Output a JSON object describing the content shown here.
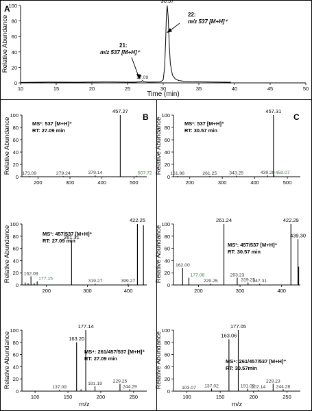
{
  "panels": [
    {
      "id": "A",
      "letter": "A",
      "type": "line",
      "ylabel": "Relative Abundance",
      "xlabel": "Time (min)",
      "xlim": [
        10,
        50
      ],
      "ylim": [
        0,
        100
      ],
      "xticks": [
        10,
        15,
        20,
        25,
        30,
        35,
        40,
        45,
        50
      ],
      "yticks": [
        0,
        20,
        40,
        60,
        80,
        100
      ],
      "labels_a": [
        {
          "text": "30.57",
          "x": 30.57,
          "y": 101
        }
      ],
      "labels_b": [
        {
          "text": "27.09",
          "x": 27.09,
          "y": 3.5
        }
      ],
      "series": [
        {
          "x": [
            10,
            14,
            18,
            22,
            26,
            26.9,
            27.09,
            27.3,
            28,
            29.6,
            30.0,
            30.2,
            30.35,
            30.45,
            30.57,
            30.7,
            30.85,
            31.0,
            31.3,
            31.7,
            32.2,
            33,
            34,
            36,
            38,
            39.5
          ],
          "y": [
            0.5,
            1.0,
            0.8,
            1.2,
            0.9,
            1.5,
            3.0,
            1.4,
            1.0,
            1.2,
            4,
            20,
            55,
            88,
            100,
            85,
            50,
            25,
            10,
            5,
            3,
            2,
            1.5,
            1.2,
            1.0,
            0.8
          ]
        }
      ],
      "annotations": [
        {
          "line1": "21:",
          "line2": "m/z 537 [M+H]⁺"
        },
        {
          "line1": "22:",
          "line2": "m/z 537 [M+H]⁺"
        }
      ]
    },
    {
      "id": "B1",
      "letter": "B",
      "type": "bar",
      "ylabel": "Relative Abundance",
      "xlabel": "",
      "xlim": [
        150,
        540
      ],
      "ylim": [
        0,
        100
      ],
      "xticks": [
        200,
        300,
        400,
        500
      ],
      "yticks": [
        0,
        20,
        40,
        60,
        80,
        100
      ],
      "bars": [
        {
          "x": 173.09,
          "y": 1
        },
        {
          "x": 279.24,
          "y": 1
        },
        {
          "x": 379.14,
          "y": 2
        },
        {
          "x": 457.27,
          "y": 100
        },
        {
          "x": 507.72,
          "y": 1.5
        }
      ],
      "labels_a": [
        {
          "text": "457.27",
          "x": 457.27,
          "y": 100
        }
      ],
      "labels_b": [
        {
          "text": "173.09",
          "x": 173.09,
          "y": 1
        },
        {
          "text": "279.24",
          "x": 279.24,
          "y": 1
        },
        {
          "text": "379.14",
          "x": 379.14,
          "y": 2
        }
      ],
      "labels_c": [
        {
          "text": "507.72",
          "x": 507.72,
          "y": 1.5
        }
      ],
      "info1": "MS²: 537 [M+H]⁺",
      "info2": "RT: 27.09 min"
    },
    {
      "id": "C1",
      "letter": "C",
      "type": "bar",
      "ylabel": "Relative Abundance",
      "xlabel": "",
      "xlim": [
        150,
        540
      ],
      "ylim": [
        0,
        100
      ],
      "xticks": [
        200,
        300,
        400,
        500
      ],
      "yticks": [
        0,
        20,
        40,
        60,
        80,
        100
      ],
      "bars": [
        {
          "x": 161.98,
          "y": 1
        },
        {
          "x": 261.25,
          "y": 1
        },
        {
          "x": 343.25,
          "y": 1.5
        },
        {
          "x": 439.28,
          "y": 2
        },
        {
          "x": 457.31,
          "y": 100
        },
        {
          "x": 459.07,
          "y": 2
        }
      ],
      "labels_a": [
        {
          "text": "457.31",
          "x": 457.31,
          "y": 100
        }
      ],
      "labels_b": [
        {
          "text": "161.98",
          "x": 161.98,
          "y": 1
        },
        {
          "text": "261.25",
          "x": 261.25,
          "y": 1
        },
        {
          "text": "343.25",
          "x": 343.25,
          "y": 1.5
        },
        {
          "text": "439.28",
          "x": 439.28,
          "y": 2
        }
      ],
      "labels_c": [
        {
          "text": "459.07",
          "x": 459.07,
          "y": 2
        }
      ],
      "info1": "MS²: 537 [M+H]⁺",
      "info2": "RT: 30.57 min"
    },
    {
      "id": "B2",
      "letter": "",
      "type": "bar",
      "ylabel": "Relative Abundance",
      "xlabel": "",
      "xlim": [
        140,
        445
      ],
      "ylim": [
        0,
        100
      ],
      "xticks": [
        200,
        300,
        400
      ],
      "yticks": [
        0,
        20,
        40,
        60,
        80,
        100
      ],
      "bars": [
        {
          "x": 148,
          "y": 4
        },
        {
          "x": 155,
          "y": 3
        },
        {
          "x": 162.08,
          "y": 14
        },
        {
          "x": 170,
          "y": 3
        },
        {
          "x": 177.15,
          "y": 6
        },
        {
          "x": 261.31,
          "y": 72
        },
        {
          "x": 319.27,
          "y": 2
        },
        {
          "x": 399.27,
          "y": 2
        },
        {
          "x": 422.25,
          "y": 100
        },
        {
          "x": 437,
          "y": 98
        }
      ],
      "labels_a": [
        {
          "text": "261.31",
          "x": 261.31,
          "y": 72
        },
        {
          "text": "422.25",
          "x": 422.25,
          "y": 100
        }
      ],
      "labels_b": [
        {
          "text": "162.08",
          "x": 162.08,
          "y": 14
        },
        {
          "text": "319.27",
          "x": 319.27,
          "y": 2
        },
        {
          "text": "399.27",
          "x": 399.27,
          "y": 2
        }
      ],
      "labels_c": [
        {
          "text": "177.15",
          "x": 177.15,
          "y": 6
        }
      ],
      "info1": "MS³: 457/537 [M+H]⁺",
      "info2": "RT: 27.09 min"
    },
    {
      "id": "C2",
      "letter": "",
      "type": "bar",
      "ylabel": "Relative Abundance",
      "xlabel": "",
      "xlim": [
        140,
        445
      ],
      "ylim": [
        0,
        100
      ],
      "xticks": [
        200,
        300,
        400
      ],
      "yticks": [
        0,
        20,
        40,
        60,
        80,
        100
      ],
      "bars": [
        {
          "x": 162.0,
          "y": 28
        },
        {
          "x": 177.08,
          "y": 12
        },
        {
          "x": 229.25,
          "y": 2
        },
        {
          "x": 261.24,
          "y": 100
        },
        {
          "x": 293.23,
          "y": 12
        },
        {
          "x": 319.25,
          "y": 4
        },
        {
          "x": 347.31,
          "y": 2
        },
        {
          "x": 422.29,
          "y": 100
        },
        {
          "x": 439.3,
          "y": 75
        },
        {
          "x": 441,
          "y": 30
        }
      ],
      "labels_a": [
        {
          "text": "261.24",
          "x": 261.24,
          "y": 100
        },
        {
          "text": "422.29",
          "x": 422.29,
          "y": 100
        },
        {
          "text": "439.30",
          "x": 439.3,
          "y": 75
        }
      ],
      "labels_b": [
        {
          "text": "162.00",
          "x": 162.0,
          "y": 28
        },
        {
          "text": "229.25",
          "x": 229.25,
          "y": 2
        },
        {
          "text": "293.23",
          "x": 293.23,
          "y": 12
        },
        {
          "text": "319.25",
          "x": 319.25,
          "y": 4
        },
        {
          "text": "347.31",
          "x": 347.31,
          "y": 2
        }
      ],
      "labels_c": [
        {
          "text": "177.08",
          "x": 177.08,
          "y": 12
        }
      ],
      "info1": "MS³: 457/537 [M+H]⁺",
      "info2": "RT: 30.57 min"
    },
    {
      "id": "B3",
      "letter": "",
      "type": "bar",
      "ylabel": "Relative Abundance",
      "xlabel": "m/z",
      "xlim": [
        80,
        270
      ],
      "ylim": [
        0,
        100
      ],
      "xticks": [
        100,
        150,
        200,
        250
      ],
      "yticks": [
        0,
        20,
        40,
        60,
        80,
        100
      ],
      "bars": [
        {
          "x": 137.09,
          "y": 2
        },
        {
          "x": 163.2,
          "y": 80
        },
        {
          "x": 170,
          "y": 3
        },
        {
          "x": 177.14,
          "y": 100
        },
        {
          "x": 191.19,
          "y": 8
        },
        {
          "x": 229.25,
          "y": 12
        },
        {
          "x": 244.29,
          "y": 3
        }
      ],
      "labels_a": [
        {
          "text": "177.14",
          "x": 177.14,
          "y": 100
        },
        {
          "text": "163.20",
          "x": 163.2,
          "y": 80
        }
      ],
      "labels_b": [
        {
          "text": "137.09",
          "x": 137.09,
          "y": 2
        },
        {
          "text": "191.19",
          "x": 191.19,
          "y": 8
        },
        {
          "text": "229.25",
          "x": 229.25,
          "y": 12
        },
        {
          "text": "244.29",
          "x": 244.29,
          "y": 3
        }
      ],
      "labels_c": [],
      "info1": "MS⁴: 261/457/537 [M+H]⁺",
      "info2": "RT: 27.09 min"
    },
    {
      "id": "C3",
      "letter": "",
      "type": "bar",
      "ylabel": "Relative Abundance",
      "xlabel": "m/z",
      "xlim": [
        80,
        270
      ],
      "ylim": [
        0,
        100
      ],
      "xticks": [
        100,
        150,
        200,
        250
      ],
      "yticks": [
        0,
        20,
        40,
        60,
        80,
        100
      ],
      "bars": [
        {
          "x": 103.07,
          "y": 1
        },
        {
          "x": 137.02,
          "y": 4
        },
        {
          "x": 163.06,
          "y": 85
        },
        {
          "x": 177.05,
          "y": 100
        },
        {
          "x": 191.09,
          "y": 4
        },
        {
          "x": 207.14,
          "y": 2
        },
        {
          "x": 229.23,
          "y": 12
        },
        {
          "x": 244.28,
          "y": 3
        }
      ],
      "labels_a": [
        {
          "text": "177.05",
          "x": 177.05,
          "y": 100
        },
        {
          "text": "163.06",
          "x": 163.06,
          "y": 85
        }
      ],
      "labels_b": [
        {
          "text": "103.07",
          "x": 103.07,
          "y": 1
        },
        {
          "text": "137.02",
          "x": 137.02,
          "y": 4
        },
        {
          "text": "191.09",
          "x": 191.09,
          "y": 4
        },
        {
          "text": "207.14",
          "x": 207.14,
          "y": 2
        },
        {
          "text": "229.23",
          "x": 229.23,
          "y": 12
        },
        {
          "text": "244.28",
          "x": 244.28,
          "y": 3
        }
      ],
      "labels_c": [],
      "info1": "MS⁴: 261/457/537 [M+H]⁺",
      "info2": "RT: 30.57min"
    }
  ],
  "chart_data": [
    {
      "type": "line",
      "xlabel": "Time (min)",
      "ylabel": "Relative Abundance",
      "xlim": [
        10,
        50
      ],
      "ylim": [
        0,
        100
      ],
      "series": [
        {
          "x": [
            10,
            14,
            18,
            22,
            26,
            26.9,
            27.09,
            27.3,
            28,
            29.6,
            30.0,
            30.2,
            30.35,
            30.45,
            30.57,
            30.7,
            30.85,
            31.0,
            31.3,
            31.7,
            32.2,
            33,
            34,
            36,
            38,
            39.5
          ],
          "y": [
            0.5,
            1.0,
            0.8,
            1.2,
            0.9,
            1.5,
            3.0,
            1.4,
            1.0,
            1.2,
            4,
            20,
            55,
            88,
            100,
            85,
            50,
            25,
            10,
            5,
            3,
            2,
            1.5,
            1.2,
            1.0,
            0.8
          ]
        }
      ],
      "peaks": [
        {
          "x": 27.09,
          "label": "21: m/z 537 [M+H]⁺"
        },
        {
          "x": 30.57,
          "label": "22: m/z 537 [M+H]⁺"
        }
      ]
    },
    {
      "type": "bar",
      "ylabel": "Relative Abundance",
      "annotation": "MS²: 537 [M+H]⁺ RT: 27.09 min",
      "x": [
        173.09,
        279.24,
        379.14,
        457.27,
        507.72
      ],
      "values": [
        1,
        1,
        2,
        100,
        1.5
      ]
    },
    {
      "type": "bar",
      "ylabel": "Relative Abundance",
      "annotation": "MS²: 537 [M+H]⁺ RT: 30.57 min",
      "x": [
        161.98,
        261.25,
        343.25,
        439.28,
        457.31,
        459.07
      ],
      "values": [
        1,
        1,
        1.5,
        2,
        100,
        2
      ]
    },
    {
      "type": "bar",
      "ylabel": "Relative Abundance",
      "annotation": "MS³: 457/537 [M+H]⁺ RT: 27.09 min",
      "x": [
        162.08,
        177.15,
        261.31,
        319.27,
        399.27,
        422.25
      ],
      "values": [
        14,
        6,
        72,
        2,
        2,
        100
      ]
    },
    {
      "type": "bar",
      "ylabel": "Relative Abundance",
      "annotation": "MS³: 457/537 [M+H]⁺ RT: 30.57 min",
      "x": [
        162.0,
        177.08,
        229.25,
        261.24,
        293.23,
        319.25,
        347.31,
        422.29,
        439.3
      ],
      "values": [
        28,
        12,
        2,
        100,
        12,
        4,
        2,
        100,
        75
      ]
    },
    {
      "type": "bar",
      "xlabel": "m/z",
      "ylabel": "Relative Abundance",
      "annotation": "MS⁴: 261/457/537 [M+H]⁺ RT: 27.09 min",
      "x": [
        137.09,
        163.2,
        177.14,
        191.19,
        229.25,
        244.29
      ],
      "values": [
        2,
        80,
        100,
        8,
        12,
        3
      ]
    },
    {
      "type": "bar",
      "xlabel": "m/z",
      "ylabel": "Relative Abundance",
      "annotation": "MS⁴: 261/457/537 [M+H]⁺ RT: 30.57min",
      "x": [
        103.07,
        137.02,
        163.06,
        177.05,
        191.09,
        207.14,
        229.23,
        244.28
      ],
      "values": [
        1,
        4,
        85,
        100,
        4,
        2,
        12,
        3
      ]
    }
  ]
}
